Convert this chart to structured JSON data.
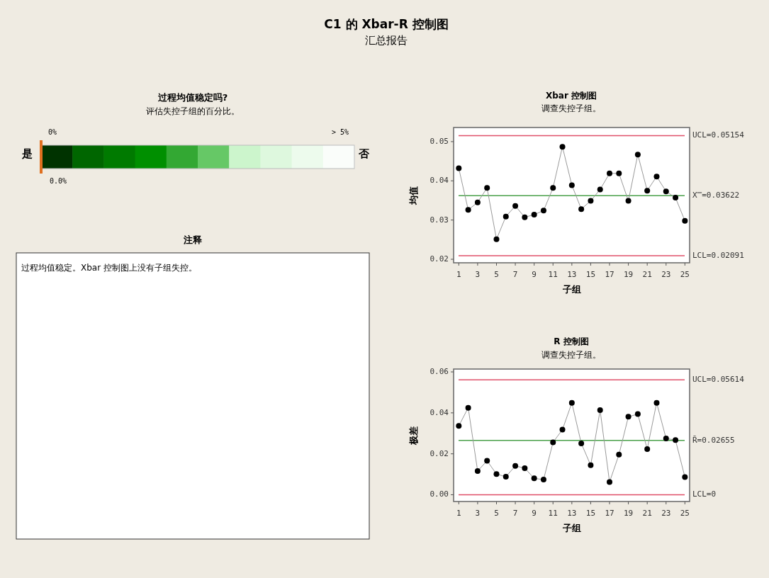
{
  "chart_data": [
    {
      "type": "other",
      "title": "C1 的 Xbar-R 控制图",
      "subtitle": "汇总报告"
    },
    {
      "type": "other",
      "title": "过程均值稳定吗?",
      "subtitle": "评估失控子组的百分比。",
      "annotations": [
        "是",
        "否",
        "0%",
        "> 5%",
        "0.0%"
      ]
    },
    {
      "type": "other",
      "title": "注释",
      "annotations": [
        "过程均值稳定。Xbar 控制图上没有子组失控。"
      ]
    },
    {
      "type": "line",
      "title": "Xbar 控制图",
      "subtitle": "调查失控子组。",
      "xlabel": "子组",
      "ylabel": "均值",
      "x": [
        1,
        2,
        3,
        4,
        5,
        6,
        7,
        8,
        9,
        10,
        11,
        12,
        13,
        14,
        15,
        16,
        17,
        18,
        19,
        20,
        21,
        22,
        23,
        24,
        25
      ],
      "xlim": [
        0.45,
        25.5
      ],
      "xticks": [
        1,
        3,
        5,
        7,
        9,
        11,
        13,
        15,
        17,
        19,
        21,
        23,
        25
      ],
      "ylim": [
        0.0191,
        0.0536
      ],
      "yticks": [
        0.02,
        0.03,
        0.04,
        0.05
      ],
      "marker": "circle",
      "line_style": "solid",
      "series": [
        {
          "color": "#000000",
          "values": [
            0.0432,
            0.0326,
            0.0345,
            0.0382,
            0.0251,
            0.0309,
            0.0336,
            0.0307,
            0.0314,
            0.0324,
            0.0382,
            0.0487,
            0.0389,
            0.0328,
            0.0349,
            0.0378,
            0.0419,
            0.0419,
            0.0349,
            0.0467,
            0.0375,
            0.0411,
            0.0373,
            0.0357,
            0.0298
          ]
        }
      ],
      "ref_lines": [
        {
          "axis": "y",
          "value": 0.05154,
          "label": "UCL=0.05154",
          "color": "#e0506a"
        },
        {
          "axis": "y",
          "value": 0.03622,
          "label": "X̿=0.03622",
          "color": "#4aa04a"
        },
        {
          "axis": "y",
          "value": 0.02091,
          "label": "LCL=0.02091",
          "color": "#e0506a"
        }
      ]
    },
    {
      "type": "line",
      "title": "R 控制图",
      "subtitle": "调查失控子组。",
      "xlabel": "子组",
      "ylabel": "极差",
      "x": [
        1,
        2,
        3,
        4,
        5,
        6,
        7,
        8,
        9,
        10,
        11,
        12,
        13,
        14,
        15,
        16,
        17,
        18,
        19,
        20,
        21,
        22,
        23,
        24,
        25
      ],
      "xlim": [
        0.45,
        25.5
      ],
      "xticks": [
        1,
        3,
        5,
        7,
        9,
        11,
        13,
        15,
        17,
        19,
        21,
        23,
        25
      ],
      "ylim": [
        -0.0033,
        0.0614
      ],
      "yticks": [
        {
          "value": 0,
          "label": "0.00"
        },
        0.02,
        0.04,
        0.06
      ],
      "marker": "circle",
      "line_style": "solid",
      "series": [
        {
          "color": "#000000",
          "values": [
            0.0336,
            0.0425,
            0.0116,
            0.0166,
            0.0101,
            0.0088,
            0.0141,
            0.013,
            0.008,
            0.0074,
            0.0256,
            0.0318,
            0.0449,
            0.0251,
            0.0144,
            0.0413,
            0.0062,
            0.0196,
            0.0381,
            0.0394,
            0.0223,
            0.0449,
            0.0275,
            0.0267,
            0.0086
          ]
        }
      ],
      "ref_lines": [
        {
          "axis": "y",
          "value": 0.05614,
          "label": "UCL=0.05614",
          "color": "#e0506a"
        },
        {
          "axis": "y",
          "value": 0.02655,
          "label": "R̄=0.02655",
          "color": "#4aa04a"
        },
        {
          "axis": "y",
          "value": 0,
          "label": "LCL=0",
          "color": "#e0506a"
        }
      ]
    }
  ]
}
